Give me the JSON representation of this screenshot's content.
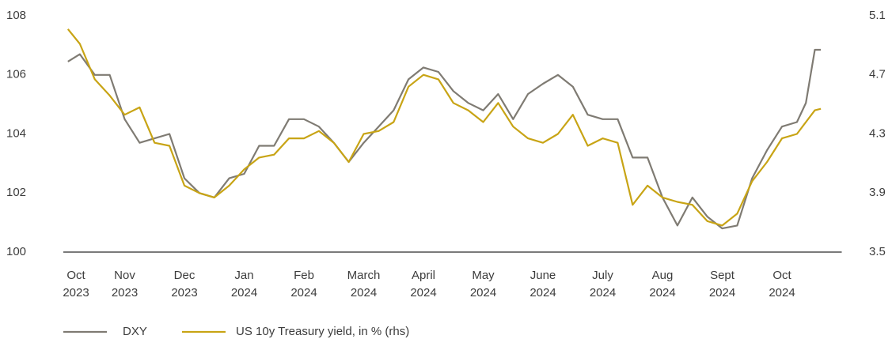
{
  "chart_data": {
    "type": "line",
    "x": [
      0.05,
      0.25,
      0.5,
      0.75,
      1.0,
      1.25,
      1.5,
      1.75,
      2.0,
      2.25,
      2.5,
      2.75,
      3.0,
      3.25,
      3.5,
      3.75,
      4.0,
      4.25,
      4.5,
      4.75,
      5.0,
      5.25,
      5.5,
      5.75,
      6.0,
      6.25,
      6.5,
      6.75,
      7.0,
      7.25,
      7.5,
      7.75,
      8.0,
      8.25,
      8.5,
      8.75,
      9.0,
      9.25,
      9.5,
      9.75,
      10.0,
      10.25,
      10.5,
      10.75,
      11.0,
      11.25,
      11.5,
      11.75,
      12.0,
      12.25,
      12.4,
      12.55,
      12.65
    ],
    "xlim": [
      0,
      13
    ],
    "xticks": [
      {
        "value": 0,
        "label": "Oct 2023"
      },
      {
        "value": 1,
        "label": "Nov 2023"
      },
      {
        "value": 2,
        "label": "Dec 2023"
      },
      {
        "value": 3,
        "label": "Jan 2024"
      },
      {
        "value": 4,
        "label": "Feb 2024"
      },
      {
        "value": 5,
        "label": "March 2024"
      },
      {
        "value": 6,
        "label": "April 2024"
      },
      {
        "value": 7,
        "label": "May 2024"
      },
      {
        "value": 8,
        "label": "June 2024"
      },
      {
        "value": 9,
        "label": "July 2024"
      },
      {
        "value": 10,
        "label": "Aug 2024"
      },
      {
        "value": 11,
        "label": "Sept 2024"
      },
      {
        "value": 12,
        "label": "Oct 2024"
      }
    ],
    "ylim": [
      100,
      108
    ],
    "yticks": [
      100,
      102,
      104,
      106,
      108
    ],
    "y2lim": [
      3.5,
      5.1
    ],
    "y2ticks": [
      3.5,
      3.9,
      4.3,
      4.7,
      5.1
    ],
    "legend": "bottom",
    "series": [
      {
        "name": "DXY",
        "color": "#7f7b73",
        "values": [
          106.45,
          106.7,
          106.0,
          106.0,
          104.5,
          103.7,
          103.85,
          104.0,
          102.5,
          102.0,
          101.85,
          102.5,
          102.65,
          103.6,
          103.6,
          104.5,
          104.5,
          104.25,
          103.7,
          103.05,
          103.7,
          104.25,
          104.8,
          105.85,
          106.25,
          106.1,
          105.45,
          105.05,
          104.8,
          105.35,
          104.5,
          105.35,
          105.7,
          106.0,
          105.6,
          104.65,
          104.5,
          104.5,
          103.2,
          103.2,
          101.85,
          100.9,
          101.85,
          101.2,
          100.8,
          100.9,
          102.5,
          103.45,
          104.25,
          104.4,
          105.05,
          106.85,
          106.85
        ]
      },
      {
        "name": "US 10y Treasury yield, in % (rhs)",
        "color": "#c8a415",
        "axis": "y2",
        "values": [
          5.01,
          4.91,
          4.67,
          4.56,
          4.43,
          4.48,
          4.24,
          4.22,
          3.95,
          3.9,
          3.87,
          3.95,
          4.06,
          4.14,
          4.16,
          4.27,
          4.27,
          4.32,
          4.24,
          4.11,
          4.3,
          4.32,
          4.38,
          4.62,
          4.7,
          4.67,
          4.51,
          4.46,
          4.38,
          4.51,
          4.35,
          4.27,
          4.24,
          4.3,
          4.43,
          4.22,
          4.27,
          4.24,
          3.82,
          3.95,
          3.87,
          3.84,
          3.82,
          3.71,
          3.68,
          3.76,
          3.98,
          4.11,
          4.27,
          4.3,
          4.38,
          4.46,
          4.47
        ]
      }
    ]
  }
}
